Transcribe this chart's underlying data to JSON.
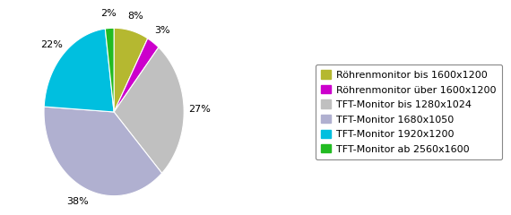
{
  "labels": [
    "Röhrenmonitor bis 1600x1200",
    "Röhrenmonitor über 1600x1200",
    "TFT-Monitor bis 1280x1024",
    "TFT-Monitor 1680x1050",
    "TFT-Monitor 1920x1200",
    "TFT-Monitor ab 2560x1600"
  ],
  "values": [
    8,
    3,
    27,
    38,
    22,
    2
  ],
  "colors": [
    "#b5b830",
    "#cc00cc",
    "#c0c0c0",
    "#b0b0d0",
    "#00bfdf",
    "#22bb22"
  ],
  "background_color": "#ffffff",
  "startangle": 90,
  "label_fontsize": 8,
  "legend_fontsize": 8
}
